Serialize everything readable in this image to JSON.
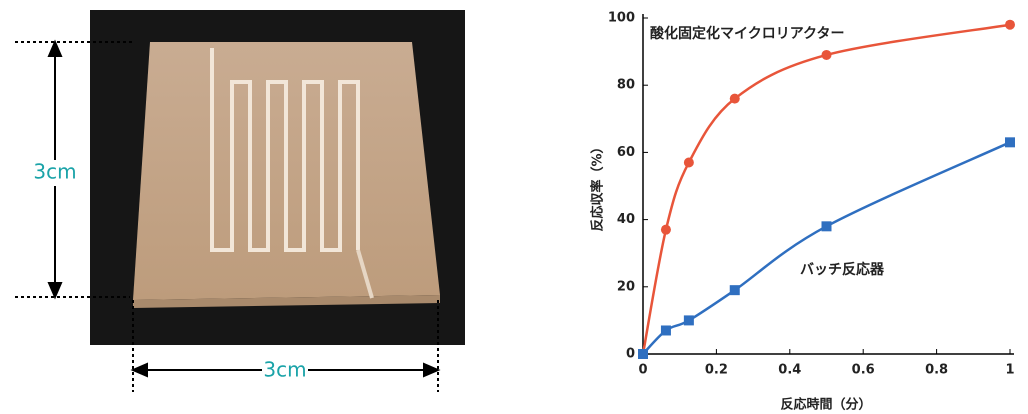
{
  "chart_data": {
    "type": "line",
    "annotations": [
      "3cm",
      "3cm"
    ],
    "x_label": "反応時間（分）",
    "y_label": "反応収率（%）",
    "x": [
      0,
      0.0625,
      0.125,
      0.25,
      0.5,
      1
    ],
    "series": [
      {
        "name": "酸化固定化マイクロリアクター",
        "color": "#e8553a",
        "marker": "circle",
        "values": [
          0,
          37,
          57,
          76,
          89,
          98
        ]
      },
      {
        "name": "バッチ反応器",
        "color": "#2f6fc0",
        "marker": "square",
        "values": [
          0,
          7,
          10,
          19,
          38,
          63
        ]
      }
    ],
    "xlim": [
      0,
      1
    ],
    "xticks": [
      0,
      0.2,
      0.4,
      0.6,
      0.8,
      1
    ],
    "ylim": [
      0,
      100
    ],
    "yticks": [
      0,
      20,
      40,
      60,
      80,
      100
    ],
    "grid": false,
    "smooth": true
  }
}
